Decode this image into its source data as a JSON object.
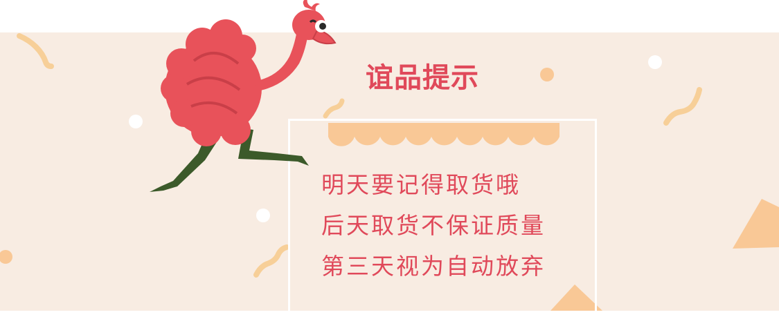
{
  "title": "谊品提示",
  "notice_lines": [
    "明天要记得取货哦",
    "后天取货不保证质量",
    "第三天视为自动放弃"
  ],
  "colors": {
    "background_band": "#f8ece2",
    "accent_red": "#e0495a",
    "scallop_orange": "#f9c896",
    "ostrich_body": "#e8525a",
    "ostrich_legs": "#3c5a2a"
  }
}
